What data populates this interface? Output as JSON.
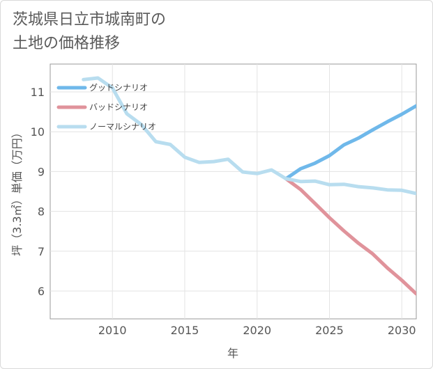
{
  "title_lines": [
    "茨城県日立市城南町の",
    "土地の価格推移"
  ],
  "chart_data": {
    "type": "line",
    "xlabel": "年",
    "ylabel": "坪（3.3㎡）単価（万円）",
    "xlim": [
      2005.7,
      2031
    ],
    "ylim": [
      5.3,
      11.7
    ],
    "x_ticks": [
      2010,
      2015,
      2020,
      2025,
      2030
    ],
    "y_ticks": [
      6,
      7,
      8,
      9,
      10,
      11
    ],
    "grid": true,
    "legend_position": "top-left",
    "series": [
      {
        "name": "グッドシナリオ",
        "color": "#6fb8ea",
        "x": [
          2022,
          2023,
          2024,
          2025,
          2026,
          2027,
          2028,
          2029,
          2030,
          2031
        ],
        "values": [
          8.82,
          9.07,
          9.21,
          9.4,
          9.67,
          9.84,
          10.05,
          10.25,
          10.44,
          10.65
        ]
      },
      {
        "name": "バッドシナリオ",
        "color": "#e0939b",
        "x": [
          2022,
          2023,
          2024,
          2025,
          2026,
          2027,
          2028,
          2029,
          2030,
          2031
        ],
        "values": [
          8.82,
          8.55,
          8.2,
          7.84,
          7.51,
          7.2,
          6.93,
          6.58,
          6.27,
          5.93
        ]
      },
      {
        "name": "ノーマルシナリオ",
        "color": "#b8ddef",
        "x": [
          2008,
          2009,
          2010,
          2011,
          2012,
          2013,
          2014,
          2015,
          2016,
          2017,
          2018,
          2019,
          2020,
          2021,
          2022,
          2023,
          2024,
          2025,
          2026,
          2027,
          2028,
          2029,
          2030,
          2031
        ],
        "values": [
          11.31,
          11.35,
          11.1,
          10.45,
          10.18,
          9.75,
          9.68,
          9.36,
          9.23,
          9.25,
          9.31,
          8.99,
          8.95,
          9.04,
          8.82,
          8.75,
          8.76,
          8.67,
          8.68,
          8.62,
          8.59,
          8.54,
          8.53,
          8.45
        ]
      }
    ]
  }
}
